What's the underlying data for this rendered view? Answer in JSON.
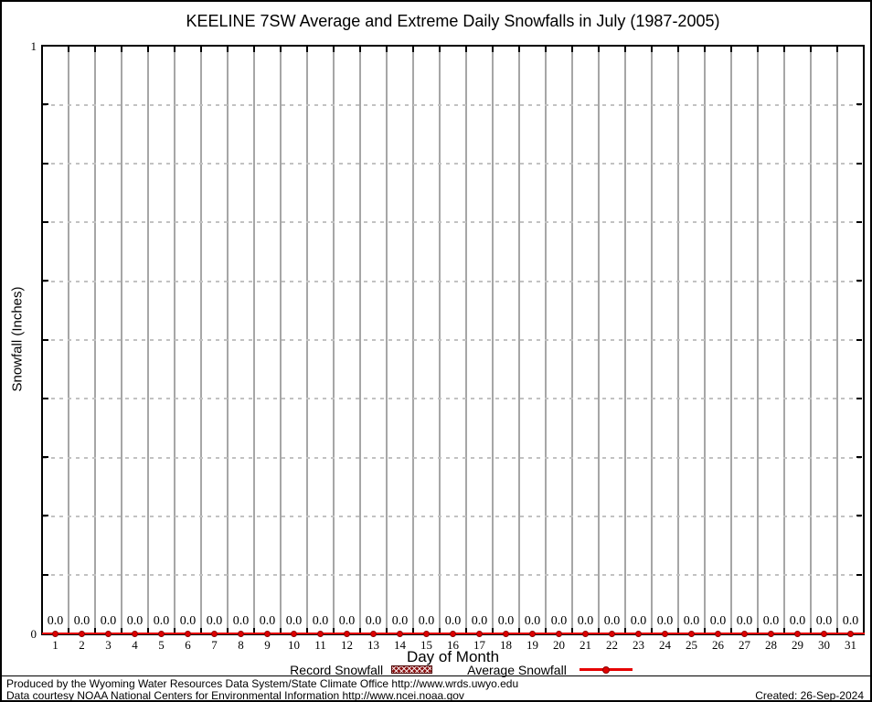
{
  "chart_data": {
    "type": "line",
    "title": "KEELINE 7SW Average and Extreme Daily Snowfalls in July (1987-2005)",
    "xlabel": "Day of Month",
    "ylabel": "Snowfall (Inches)",
    "ylim": [
      0,
      1
    ],
    "ymin_label": "0",
    "ymax_label": "1",
    "y_minor_divisions": 10,
    "grid": {
      "vertical": "solid-per-day",
      "horizontal": "dashed-per-0.1"
    },
    "legend_position": "bottom-center",
    "x": [
      1,
      2,
      3,
      4,
      5,
      6,
      7,
      8,
      9,
      10,
      11,
      12,
      13,
      14,
      15,
      16,
      17,
      18,
      19,
      20,
      21,
      22,
      23,
      24,
      25,
      26,
      27,
      28,
      29,
      30,
      31
    ],
    "series": [
      {
        "name": "Record Snowfall",
        "style": "hatched-box",
        "color": "#8b1111",
        "values": [
          0,
          0,
          0,
          0,
          0,
          0,
          0,
          0,
          0,
          0,
          0,
          0,
          0,
          0,
          0,
          0,
          0,
          0,
          0,
          0,
          0,
          0,
          0,
          0,
          0,
          0,
          0,
          0,
          0,
          0,
          0
        ]
      },
      {
        "name": "Average Snowfall",
        "style": "line-with-points",
        "color": "#e60000",
        "values": [
          0.0,
          0.0,
          0.0,
          0.0,
          0.0,
          0.0,
          0.0,
          0.0,
          0.0,
          0.0,
          0.0,
          0.0,
          0.0,
          0.0,
          0.0,
          0.0,
          0.0,
          0.0,
          0.0,
          0.0,
          0.0,
          0.0,
          0.0,
          0.0,
          0.0,
          0.0,
          0.0,
          0.0,
          0.0,
          0.0,
          0.0
        ]
      }
    ],
    "point_labels": [
      "0.0",
      "0.0",
      "0.0",
      "0.0",
      "0.0",
      "0.0",
      "0.0",
      "0.0",
      "0.0",
      "0.0",
      "0.0",
      "0.0",
      "0.0",
      "0.0",
      "0.0",
      "0.0",
      "0.0",
      "0.0",
      "0.0",
      "0.0",
      "0.0",
      "0.0",
      "0.0",
      "0.0",
      "0.0",
      "0.0",
      "0.0",
      "0.0",
      "0.0",
      "0.0",
      "0.0"
    ]
  },
  "colors": {
    "average_line": "#e60000",
    "record_swatch": "#8b1111",
    "grid_vertical": "#a6a6a6",
    "grid_horizontal_dashed": "#c2c2c2"
  },
  "footer": {
    "line1": "Produced by the Wyoming Water Resources Data System/State Climate Office http://www.wrds.uwyo.edu",
    "line2": "Data courtesy NOAA National Centers for Environmental Information http://www.ncei.noaa.gov",
    "created": "Created: 26-Sep-2024"
  }
}
